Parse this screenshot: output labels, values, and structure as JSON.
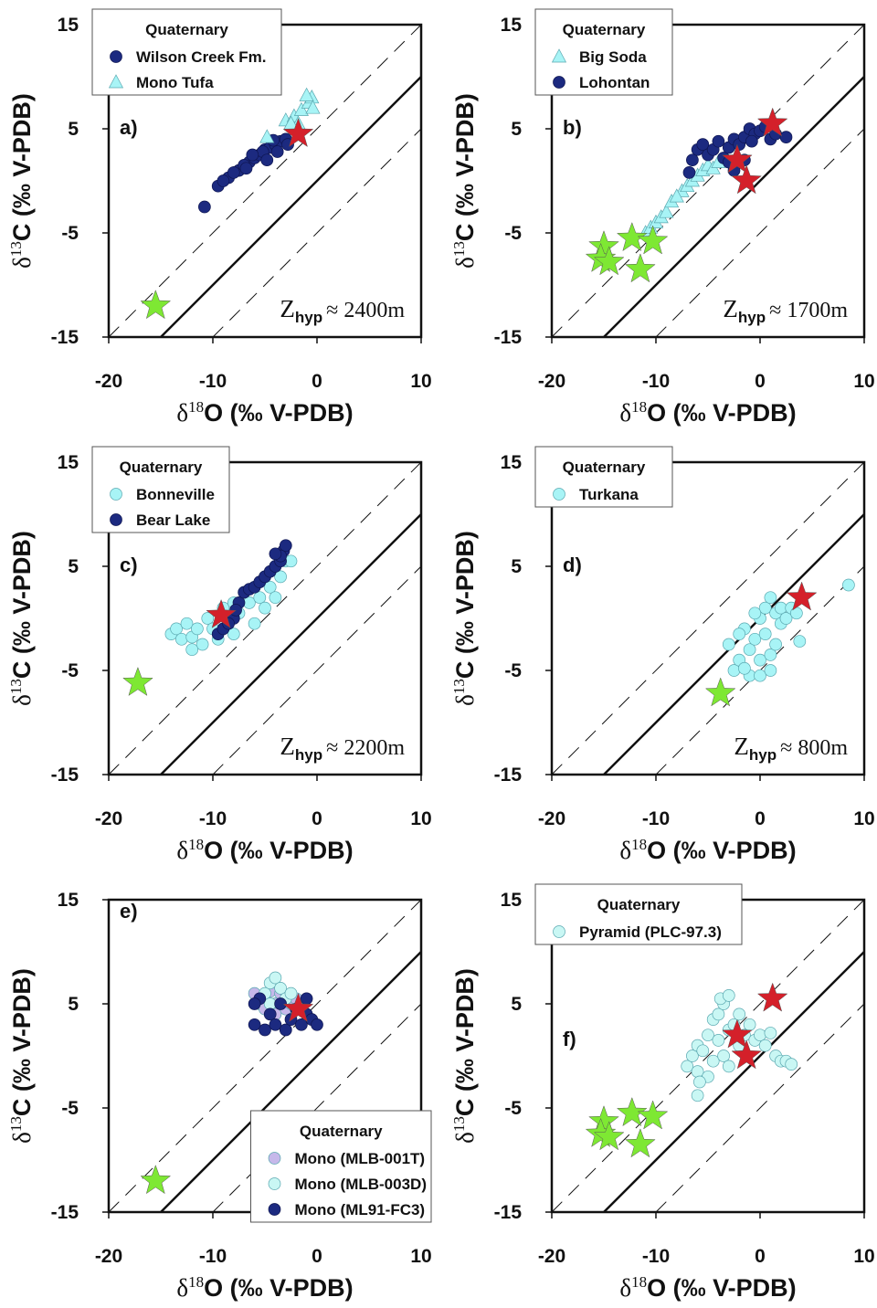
{
  "chart_data": [
    {
      "type": "scatter",
      "panel_label": "a)",
      "xlabel": {
        "symbol": "δ",
        "sup": "18",
        "text": "O (‰ V-PDB)"
      },
      "ylabel": {
        "symbol": "δ",
        "sup": "13",
        "text": "C (‰ V-PDB)"
      },
      "xlim": [
        -20,
        10
      ],
      "ylim": [
        -15,
        15
      ],
      "xticks": [
        -20,
        -10,
        0,
        10
      ],
      "yticks": [
        -15,
        -5,
        5,
        15
      ],
      "reference_lines": [
        {
          "intercept": 0,
          "dashed": false
        },
        {
          "intercept": 5,
          "dashed": true
        },
        {
          "intercept": -5,
          "dashed": true
        }
      ],
      "legend": {
        "title": "Quaternary",
        "position": "top-left"
      },
      "annotation": {
        "symbol": "Z",
        "sub": "hyp",
        "text": "≈ 2400m"
      },
      "series": [
        {
          "name": "Wilson Creek Fm.",
          "color": "#1c2a80",
          "marker": "circle",
          "x": [
            -10.8,
            -9.5,
            -8.5,
            -7.5,
            -6.5,
            -6,
            -5.5,
            -5,
            -4.5,
            -4,
            -3.5,
            -3,
            -7,
            -8,
            -9,
            -6.8,
            -5.2,
            -4.2,
            -3.8,
            -2.8,
            -4.8,
            -6.2
          ],
          "values": [
            -2.5,
            -0.5,
            0.3,
            1,
            1.8,
            2.2,
            2.5,
            3,
            3.2,
            3.5,
            3.8,
            4,
            1.5,
            0.8,
            0,
            1.2,
            2.8,
            3.9,
            2.8,
            3.5,
            2,
            2.5
          ]
        },
        {
          "name": "Mono Tufa",
          "color": "#a8f4f6",
          "marker": "triangle",
          "x": [
            -4.8,
            -3,
            -2.2,
            -1.5,
            -0.8,
            -0.5,
            -1,
            -0.4,
            -1.8,
            -2.5
          ],
          "values": [
            4.2,
            5.8,
            6.2,
            6.8,
            7.5,
            8,
            8.2,
            7,
            5.5,
            5.5
          ]
        },
        {
          "color": "#d4202a",
          "marker": "star",
          "x": [
            -1.8
          ],
          "values": [
            4.5
          ]
        },
        {
          "color": "#7ee833",
          "marker": "star",
          "x": [
            -15.5
          ],
          "values": [
            -12
          ]
        }
      ]
    },
    {
      "type": "scatter",
      "panel_label": "b)",
      "xlabel": {
        "symbol": "δ",
        "sup": "18",
        "text": "O (‰ V-PDB)"
      },
      "ylabel": {
        "symbol": "δ",
        "sup": "13",
        "text": "C (‰ V-PDB)"
      },
      "xlim": [
        -20,
        10
      ],
      "ylim": [
        -15,
        15
      ],
      "xticks": [
        -20,
        -10,
        0,
        10
      ],
      "yticks": [
        -15,
        -5,
        5,
        15
      ],
      "reference_lines": [
        {
          "intercept": 0,
          "dashed": false
        },
        {
          "intercept": 5,
          "dashed": true
        },
        {
          "intercept": -5,
          "dashed": true
        }
      ],
      "legend": {
        "title": "Quaternary",
        "position": "top-left"
      },
      "annotation": {
        "symbol": "Z",
        "sub": "hyp",
        "text": "≈ 1700m"
      },
      "series": [
        {
          "name": "Big Soda",
          "color": "#a8f4f6",
          "marker": "triangle",
          "x": [
            -11,
            -10.5,
            -10,
            -9.5,
            -9,
            -8.5,
            -7.5,
            -7,
            -6.5,
            -6,
            -5.5,
            -5,
            -4.5,
            -4,
            -8
          ],
          "values": [
            -5,
            -4.5,
            -4,
            -3.5,
            -3,
            -2,
            -1,
            -0.5,
            0,
            0.5,
            1,
            1.5,
            1.2,
            1.8,
            -1.5
          ]
        },
        {
          "name": "Lohontan",
          "color": "#1c2a80",
          "marker": "circle",
          "x": [
            -6.5,
            -6,
            -5.5,
            -5,
            -4.5,
            -4,
            -3.5,
            -3,
            -2.5,
            -2,
            -1.5,
            -1,
            -0.5,
            0,
            0.5,
            1,
            1.5,
            2.5,
            -1.5,
            -2.5,
            -3,
            -6.8,
            -0.8
          ],
          "values": [
            2,
            3,
            3.5,
            2.5,
            3,
            3.8,
            2.2,
            3.2,
            4,
            3.5,
            4.2,
            5,
            4.5,
            4.8,
            5.2,
            4,
            4.5,
            4.2,
            2,
            1,
            1.8,
            0.8,
            3.8
          ]
        },
        {
          "color": "#d4202a",
          "marker": "star",
          "x": [
            1.2,
            -2.2,
            -1.3
          ],
          "values": [
            5.5,
            2,
            0
          ]
        },
        {
          "color": "#7ee833",
          "marker": "star",
          "x": [
            -15,
            -15.3,
            -14.5,
            -12.3,
            -10.3,
            -11.5
          ],
          "values": [
            -6.3,
            -7.5,
            -7.8,
            -5.5,
            -5.8,
            -8.5
          ]
        }
      ]
    },
    {
      "type": "scatter",
      "panel_label": "c)",
      "xlabel": {
        "symbol": "δ",
        "sup": "18",
        "text": "O (‰ V-PDB)"
      },
      "ylabel": {
        "symbol": "δ",
        "sup": "13",
        "text": "C (‰ V-PDB)"
      },
      "xlim": [
        -20,
        10
      ],
      "ylim": [
        -15,
        15
      ],
      "xticks": [
        -20,
        -10,
        0,
        10
      ],
      "yticks": [
        -15,
        -5,
        5,
        15
      ],
      "reference_lines": [
        {
          "intercept": 0,
          "dashed": false
        },
        {
          "intercept": 5,
          "dashed": true
        },
        {
          "intercept": -5,
          "dashed": true
        }
      ],
      "legend": {
        "title": "Quaternary",
        "position": "top-left"
      },
      "annotation": {
        "symbol": "Z",
        "sub": "hyp",
        "text": "≈ 2200m"
      },
      "series": [
        {
          "name": "Bonneville",
          "color": "#a8f4f6",
          "marker": "circle",
          "x": [
            -14,
            -13.5,
            -13,
            -12.5,
            -12,
            -11.5,
            -11,
            -10.5,
            -10,
            -9.5,
            -9,
            -8.5,
            -8,
            -7.5,
            -7,
            -6.5,
            -6,
            -5.5,
            -5,
            -4.5,
            -4,
            -3.5,
            -3,
            -2.5,
            -12,
            -8,
            -6,
            -5,
            -4
          ],
          "values": [
            -1.5,
            -1,
            -2,
            -0.5,
            -1.8,
            -1,
            -2.5,
            0,
            -1,
            -2,
            1,
            0,
            1.5,
            0.5,
            2.5,
            1.5,
            3,
            2,
            4,
            3,
            5,
            4,
            5.5,
            5.5,
            -3,
            -1.5,
            -0.5,
            1,
            2
          ]
        },
        {
          "name": "Bear Lake",
          "color": "#1c2a80",
          "marker": "circle",
          "x": [
            -9.5,
            -9,
            -8,
            -7.5,
            -7,
            -6.5,
            -6,
            -5.5,
            -5,
            -4.5,
            -4,
            -3.5,
            -3.2,
            -3,
            -3.5,
            -4,
            -8.5,
            -7.8
          ],
          "values": [
            -1.5,
            -1,
            0,
            1.5,
            2.5,
            2.8,
            3,
            3.5,
            4,
            4.5,
            5,
            5.5,
            6.5,
            7,
            6,
            6.2,
            -0.5,
            0.8
          ]
        },
        {
          "color": "#d4202a",
          "marker": "star",
          "x": [
            -9.2
          ],
          "values": [
            0.3
          ]
        },
        {
          "color": "#7ee833",
          "marker": "star",
          "x": [
            -17.2
          ],
          "values": [
            -6.2
          ]
        }
      ]
    },
    {
      "type": "scatter",
      "panel_label": "d)",
      "xlabel": {
        "symbol": "δ",
        "sup": "18",
        "text": "O (‰ V-PDB)"
      },
      "ylabel": {
        "symbol": "δ",
        "sup": "13",
        "text": "C (‰ V-PDB)"
      },
      "xlim": [
        -20,
        10
      ],
      "ylim": [
        -15,
        15
      ],
      "xticks": [
        -20,
        -10,
        0,
        10
      ],
      "yticks": [
        -15,
        -5,
        5,
        15
      ],
      "reference_lines": [
        {
          "intercept": 0,
          "dashed": false
        },
        {
          "intercept": 5,
          "dashed": true
        },
        {
          "intercept": -5,
          "dashed": true
        }
      ],
      "legend": {
        "title": "Quaternary",
        "position": "top-left"
      },
      "annotation": {
        "symbol": "Z",
        "sub": "hyp",
        "text": "≈ 800m"
      },
      "series": [
        {
          "name": "Turkana",
          "color": "#a8f4f6",
          "marker": "circle",
          "x": [
            -3,
            -2.5,
            -2,
            -1.5,
            -1,
            -1,
            -0.5,
            0,
            0,
            0.5,
            0.5,
            1,
            1,
            1.5,
            1.5,
            2,
            2,
            2.5,
            3,
            3.5,
            -2,
            -1.5,
            0,
            1,
            -0.5,
            8.5,
            3.8
          ],
          "values": [
            -2.5,
            -5,
            -4,
            -1,
            -3,
            -5.5,
            -2,
            -4,
            0,
            1,
            -1.5,
            2,
            -3.5,
            0.5,
            -2.5,
            1,
            -0.5,
            0,
            1,
            0.5,
            -1.5,
            -4.8,
            -5.5,
            -5,
            0.5,
            3.2,
            -2.2
          ]
        },
        {
          "color": "#d4202a",
          "marker": "star",
          "x": [
            4
          ],
          "values": [
            2
          ]
        },
        {
          "color": "#7ee833",
          "marker": "star",
          "x": [
            -3.8
          ],
          "values": [
            -7.2
          ]
        }
      ]
    },
    {
      "type": "scatter",
      "panel_label": "e)",
      "xlabel": {
        "symbol": "δ",
        "sup": "18",
        "text": "O (‰ V-PDB)"
      },
      "ylabel": {
        "symbol": "δ",
        "sup": "13",
        "text": "C (‰ V-PDB)"
      },
      "xlim": [
        -20,
        10
      ],
      "ylim": [
        -15,
        15
      ],
      "xticks": [
        -20,
        -10,
        0,
        10
      ],
      "yticks": [
        -15,
        -5,
        5,
        15
      ],
      "reference_lines": [
        {
          "intercept": 0,
          "dashed": false
        },
        {
          "intercept": 5,
          "dashed": true
        },
        {
          "intercept": -5,
          "dashed": true
        }
      ],
      "legend": {
        "title": "Quaternary",
        "position": "bottom-right"
      },
      "series": [
        {
          "name": "Mono (MLB-001T)",
          "color": "#c6b8ea",
          "marker": "circle",
          "x": [
            -6,
            -5.5,
            -5,
            -4.5,
            -4,
            -3.5,
            -3,
            -2.5,
            -2,
            -1.5,
            -4,
            -5
          ],
          "values": [
            6,
            5,
            5.5,
            6.2,
            5,
            6,
            4.5,
            5,
            5.5,
            4.5,
            4,
            4.5
          ]
        },
        {
          "name": "Mono (MLB-003D)",
          "color": "#c9f7f4",
          "marker": "circle",
          "x": [
            -5,
            -4.5,
            -4,
            -3.5,
            -3,
            -2.5,
            -4.5
          ],
          "values": [
            6,
            7,
            7.5,
            6.5,
            5.5,
            6,
            5
          ]
        },
        {
          "name": "Mono (ML91-FC3)",
          "color": "#1c2a80",
          "marker": "circle",
          "x": [
            -6,
            -5.5,
            -5,
            -4.5,
            -4,
            -3.5,
            -3,
            -2.5,
            -2,
            -1.5,
            -1,
            -0.5,
            0,
            -1,
            -6
          ],
          "values": [
            3,
            5.5,
            2.5,
            4,
            3,
            5,
            2.5,
            3.5,
            4.5,
            3,
            4,
            3.5,
            3,
            5.5,
            5
          ]
        },
        {
          "color": "#d4202a",
          "marker": "star",
          "x": [
            -1.8
          ],
          "values": [
            4.5
          ]
        },
        {
          "color": "#7ee833",
          "marker": "star",
          "x": [
            -15.5
          ],
          "values": [
            -12
          ]
        }
      ]
    },
    {
      "type": "scatter",
      "panel_label": "f)",
      "xlabel": {
        "symbol": "δ",
        "sup": "18",
        "text": "O (‰ V-PDB)"
      },
      "ylabel": {
        "symbol": "δ",
        "sup": "13",
        "text": "C (‰ V-PDB)"
      },
      "xlim": [
        -20,
        10
      ],
      "ylim": [
        -15,
        15
      ],
      "xticks": [
        -20,
        -10,
        0,
        10
      ],
      "yticks": [
        -15,
        -5,
        5,
        15
      ],
      "reference_lines": [
        {
          "intercept": 0,
          "dashed": false
        },
        {
          "intercept": 5,
          "dashed": true
        },
        {
          "intercept": -5,
          "dashed": true
        }
      ],
      "legend": {
        "title": "Quaternary",
        "position": "top-left"
      },
      "series": [
        {
          "name": "Pyramid (PLC-97.3)",
          "color": "#c9f7f4",
          "marker": "circle",
          "x": [
            -7,
            -6.5,
            -6,
            -6,
            -5.5,
            -5,
            -5,
            -4.5,
            -4.5,
            -4,
            -4,
            -3.5,
            -3.5,
            -3,
            -3,
            -2.5,
            -2,
            -2,
            -1.5,
            -1,
            -0.5,
            0,
            0.5,
            1,
            1.5,
            2,
            2.5,
            3,
            -6,
            -5.8,
            -3.8,
            -3
          ],
          "values": [
            -1,
            0,
            -1.5,
            1,
            0.5,
            -2,
            2,
            3.5,
            -0.5,
            1.5,
            4,
            5,
            0,
            2.5,
            -1,
            3,
            4,
            1,
            2,
            3,
            1.5,
            2,
            1,
            2.2,
            0,
            -0.5,
            -0.5,
            -0.8,
            -3.8,
            -2.5,
            5.5,
            5.8
          ]
        },
        {
          "color": "#d4202a",
          "marker": "star",
          "x": [
            1.2,
            -2.2,
            -1.3
          ],
          "values": [
            5.5,
            2,
            0
          ]
        },
        {
          "color": "#7ee833",
          "marker": "star",
          "x": [
            -15,
            -15.3,
            -14.5,
            -12.3,
            -10.3,
            -11.5
          ],
          "values": [
            -6.3,
            -7.5,
            -7.8,
            -5.5,
            -5.8,
            -8.5
          ]
        }
      ]
    }
  ]
}
